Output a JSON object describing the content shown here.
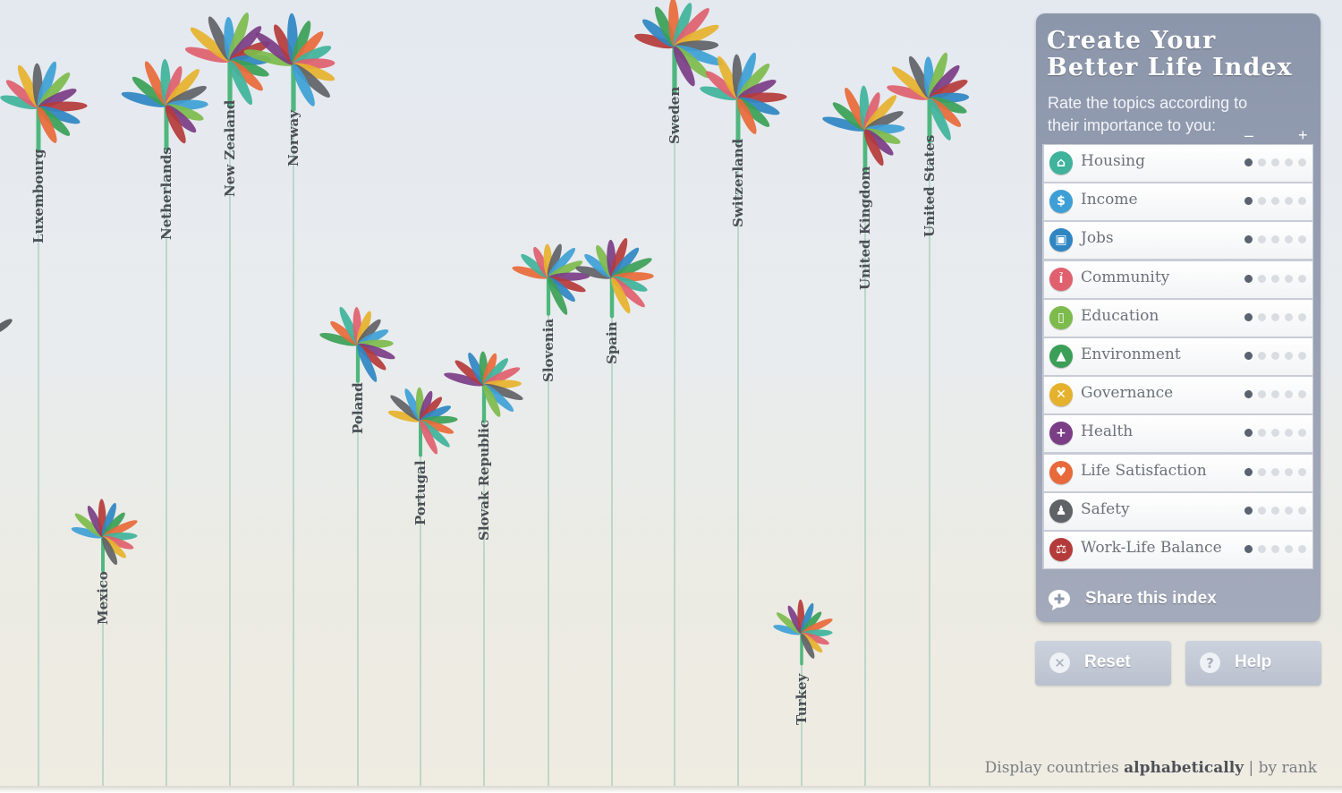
{
  "panel": {
    "title_line1": "Create Your",
    "title_line2": "Better Life Index",
    "subtitle": "Rate the topics according to their importance to you:",
    "scale_min": "–",
    "scale_max": "+",
    "topics": [
      {
        "label": "Housing",
        "icon": "house-icon",
        "glyph": "⌂",
        "color": "#3fb39b",
        "rating": 1
      },
      {
        "label": "Income",
        "icon": "money-icon",
        "glyph": "$",
        "color": "#3e9fd6",
        "rating": 1
      },
      {
        "label": "Jobs",
        "icon": "briefcase-icon",
        "glyph": "▣",
        "color": "#2f86c3",
        "rating": 1
      },
      {
        "label": "Community",
        "icon": "people-icon",
        "glyph": "ỉ",
        "color": "#e0606e",
        "rating": 1
      },
      {
        "label": "Education",
        "icon": "book-icon",
        "glyph": "▯",
        "color": "#7dbb4c",
        "rating": 1
      },
      {
        "label": "Environment",
        "icon": "tree-icon",
        "glyph": "▲",
        "color": "#3b9f57",
        "rating": 1
      },
      {
        "label": "Governance",
        "icon": "vote-icon",
        "glyph": "✕",
        "color": "#e6b22d",
        "rating": 1
      },
      {
        "label": "Health",
        "icon": "plus-icon",
        "glyph": "+",
        "color": "#7b3d86",
        "rating": 1
      },
      {
        "label": "Life Satisfaction",
        "icon": "heart-icon",
        "glyph": "♥",
        "color": "#e8693a",
        "rating": 1
      },
      {
        "label": "Safety",
        "icon": "runner-icon",
        "glyph": "♟",
        "color": "#5f6266",
        "rating": 1
      },
      {
        "label": "Work-Life Balance",
        "icon": "scales-icon",
        "glyph": "⚖",
        "color": "#b53a3a",
        "rating": 1
      }
    ],
    "share_label": "Share this index"
  },
  "buttons": {
    "reset_label": "Reset",
    "help_label": "Help"
  },
  "sort": {
    "prefix": "Display countries",
    "alphabetically": "alphabetically",
    "separator": "|",
    "by_rank": "by rank",
    "active": "alphabetically"
  },
  "countries": [
    "Luxembourg",
    "Mexico",
    "Netherlands",
    "New Zealand",
    "Norway",
    "Poland",
    "Portugal",
    "Slovak Republic",
    "Slovenia",
    "Spain",
    "Sweden",
    "Switzerland",
    "Turkey",
    "United Kingdom",
    "United States"
  ],
  "petal_colors": [
    "#3fb39b",
    "#3e9fd6",
    "#2f86c3",
    "#e0606e",
    "#7dbb4c",
    "#3b9f57",
    "#e6b22d",
    "#7b3d86",
    "#e8693a",
    "#5f6266",
    "#b53a3a"
  ]
}
